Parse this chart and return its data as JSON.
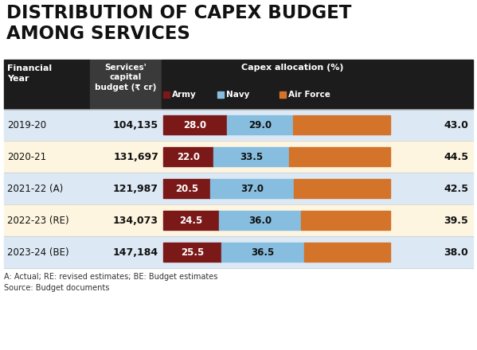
{
  "title_line1": "DISTRIBUTION OF CAPEX BUDGET",
  "title_line2": "AMONG SERVICES",
  "header_col1": "Financial\nYear",
  "header_col2": "Services'\ncapital\nbudget (₹ cr)",
  "header_col3": "Capex allocation (%)",
  "legend_army": "Army",
  "legend_navy": "Navy",
  "legend_airforce": "Air Force",
  "footer": "A: Actual; RE: revised estimates; BE: Budget estimates\nSource: Budget documents",
  "rows": [
    {
      "year": "2019-20",
      "budget": "104,135",
      "army": 28.0,
      "navy": 29.0,
      "airforce": 43.0
    },
    {
      "year": "2020-21",
      "budget": "131,697",
      "army": 22.0,
      "navy": 33.5,
      "airforce": 44.5
    },
    {
      "year": "2021-22 (A)",
      "budget": "121,987",
      "army": 20.5,
      "navy": 37.0,
      "airforce": 42.5
    },
    {
      "year": "2022-23 (RE)",
      "budget": "134,073",
      "army": 24.5,
      "navy": 36.0,
      "airforce": 39.5
    },
    {
      "year": "2023-24 (BE)",
      "budget": "147,184",
      "army": 25.5,
      "navy": 36.5,
      "airforce": 38.0
    }
  ],
  "color_army": "#7B1818",
  "color_navy": "#87BEDF",
  "color_airforce": "#D4732A",
  "color_header_dark": "#1c1c1c",
  "color_header_mid": "#3a3a3a",
  "color_header_text": "#ffffff",
  "color_row_alt1": "#dce9f5",
  "color_row_alt2": "#fdf5e0",
  "color_title_text": "#111111",
  "color_footer_text": "#333333",
  "figw": 5.99,
  "figh": 4.4,
  "dpi": 100
}
